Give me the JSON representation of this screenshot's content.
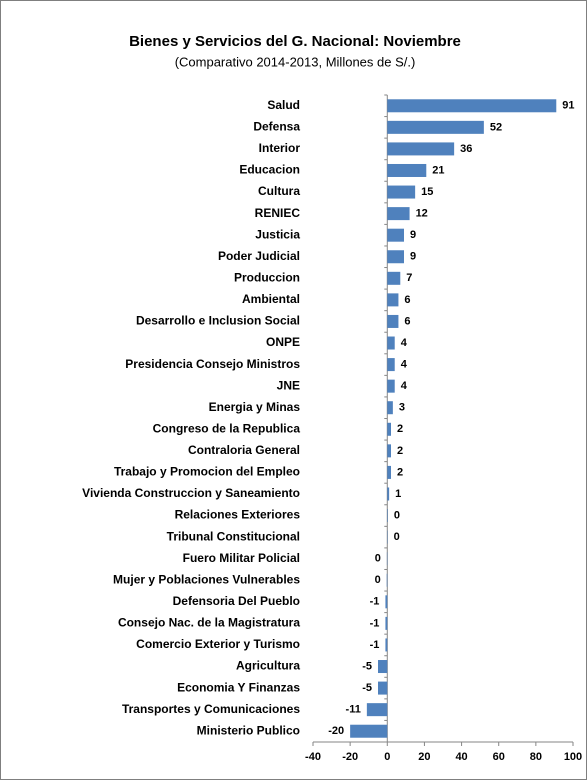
{
  "chart_data": {
    "type": "barh",
    "title": "Bienes y Servicios del G. Nacional:  Noviembre",
    "subtitle": "(Comparativo 2014-2013, Millones de S/.)",
    "categories": [
      "Salud",
      "Defensa",
      "Interior",
      "Educacion",
      "Cultura",
      "RENIEC",
      "Justicia",
      "Poder Judicial",
      "Produccion",
      "Ambiental",
      "Desarrollo e Inclusion Social",
      "ONPE",
      "Presidencia Consejo Ministros",
      "JNE",
      "Energia y Minas",
      "Congreso de la Republica",
      "Contraloria General",
      "Trabajo y Promocion del Empleo",
      "Vivienda Construccion y Saneamiento",
      "Relaciones Exteriores",
      "Tribunal Constitucional",
      "Fuero Militar Policial",
      "Mujer y Poblaciones Vulnerables",
      "Defensoria Del Pueblo",
      "Consejo Nac. de la Magistratura",
      "Comercio Exterior y Turismo",
      "Agricultura",
      "Economia Y Finanzas",
      "Transportes y Comunicaciones",
      "Ministerio Publico"
    ],
    "values": [
      91,
      52,
      36,
      21,
      15,
      12,
      9,
      9,
      7,
      6,
      6,
      4,
      4,
      4,
      3,
      2,
      2,
      2,
      1,
      0.3,
      0.2,
      -0.2,
      -0.3,
      -1,
      -1,
      -1,
      -5,
      -5,
      -11,
      -20
    ],
    "value_labels": [
      "91",
      "52",
      "36",
      "21",
      "15",
      "12",
      "9",
      "9",
      "7",
      "6",
      "6",
      "4",
      "4",
      "4",
      "3",
      "2",
      "2",
      "2",
      "1",
      "0",
      "0",
      "0",
      "0",
      "-1",
      "-1",
      "-1",
      "-5",
      "-5",
      "-11",
      "-20"
    ],
    "color": "#4f81bd",
    "xlim": [
      -40,
      100
    ],
    "xticks": [
      -40,
      -20,
      0,
      20,
      40,
      60,
      80,
      100
    ],
    "grid": false
  }
}
